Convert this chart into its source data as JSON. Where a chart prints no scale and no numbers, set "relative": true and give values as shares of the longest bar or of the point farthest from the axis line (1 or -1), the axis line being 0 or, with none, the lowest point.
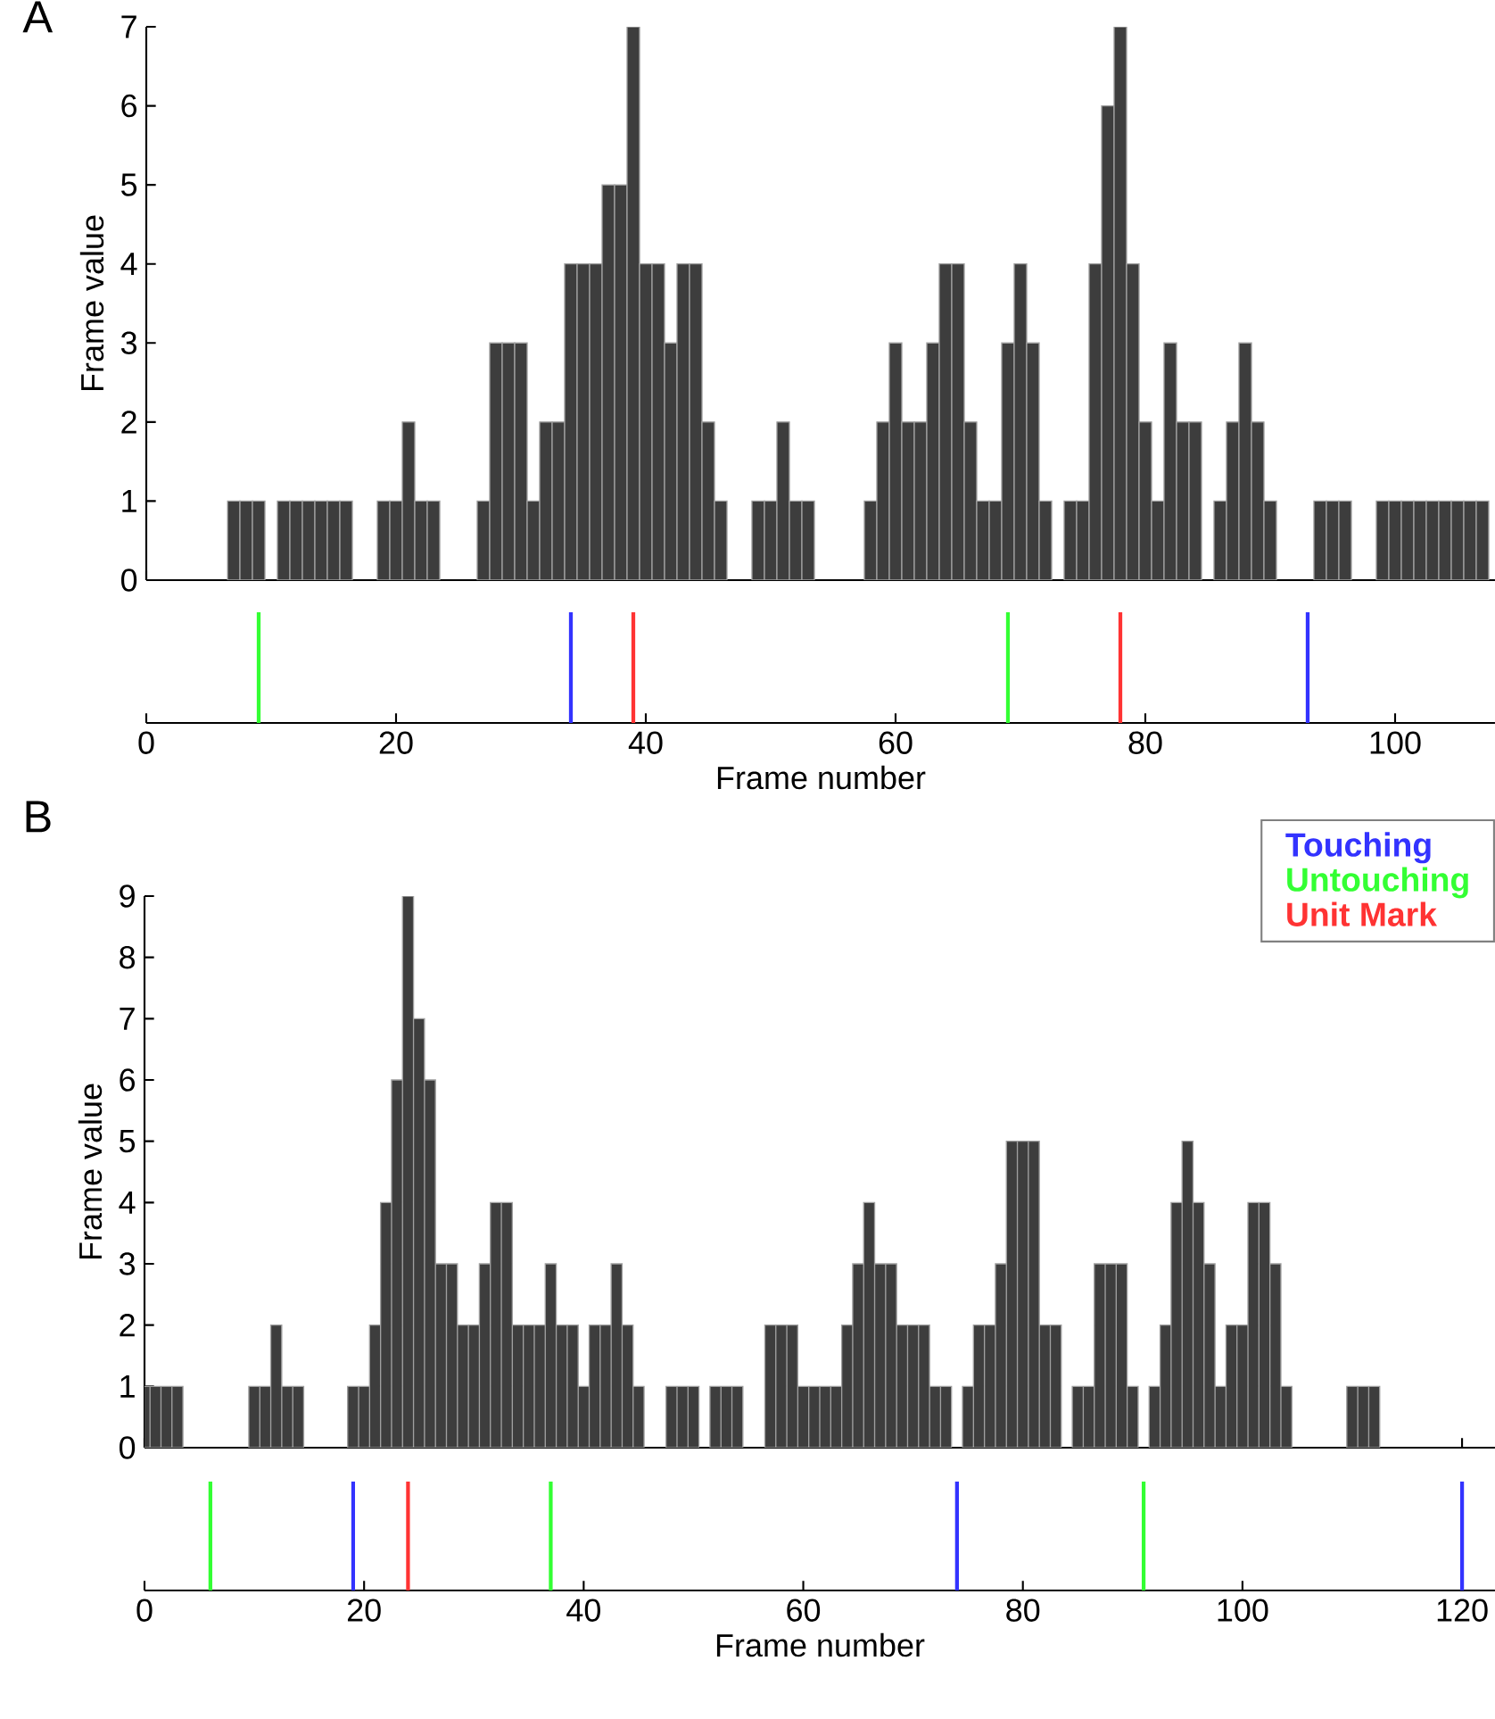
{
  "chart_data": [
    {
      "type": "bar",
      "title": "A",
      "ylabel": "Frame value",
      "color": "#3d3d3d",
      "xlim": [
        0,
        108
      ],
      "ylim": [
        0,
        7
      ],
      "xticks": [
        0,
        20,
        40,
        60,
        80,
        100
      ],
      "yticks": [
        0,
        1,
        2,
        3,
        4,
        5,
        6,
        7
      ],
      "tick_labels": "y",
      "x": [
        7,
        8,
        9,
        11,
        12,
        13,
        14,
        15,
        16,
        19,
        20,
        21,
        22,
        23,
        27,
        28,
        29,
        30,
        31,
        32,
        33,
        34,
        35,
        36,
        37,
        38,
        39,
        40,
        41,
        42,
        43,
        44,
        45,
        46,
        49,
        50,
        51,
        52,
        53,
        58,
        59,
        60,
        61,
        62,
        63,
        64,
        65,
        66,
        67,
        68,
        69,
        70,
        71,
        72,
        74,
        75,
        76,
        77,
        78,
        79,
        80,
        81,
        82,
        83,
        84,
        86,
        87,
        88,
        89,
        90,
        94,
        95,
        96,
        99,
        100,
        101,
        102,
        103,
        104,
        105,
        106,
        107
      ],
      "values": [
        1,
        1,
        1,
        1,
        1,
        1,
        1,
        1,
        1,
        1,
        1,
        2,
        1,
        1,
        1,
        3,
        3,
        3,
        1,
        2,
        2,
        4,
        4,
        4,
        5,
        5,
        7,
        4,
        4,
        3,
        4,
        4,
        2,
        1,
        1,
        1,
        2,
        1,
        1,
        1,
        2,
        3,
        2,
        2,
        3,
        4,
        4,
        2,
        1,
        1,
        3,
        4,
        3,
        1,
        1,
        1,
        4,
        6,
        7,
        4,
        2,
        1,
        3,
        2,
        2,
        1,
        2,
        3,
        2,
        1,
        1,
        1,
        1,
        1,
        1,
        1,
        1,
        1,
        1,
        1,
        1,
        1
      ]
    },
    {
      "type": "bar",
      "relative": true,
      "xlabel": "Frame number",
      "xlim": [
        0,
        108
      ],
      "xticks": [
        0,
        20,
        40,
        60,
        80,
        100
      ],
      "tick_labels": "x",
      "series": [
        {
          "color": "#3333ff",
          "x": [
            34,
            93
          ],
          "values": [
            1,
            1
          ]
        },
        {
          "color": "#33ff33",
          "x": [
            9,
            69
          ],
          "values": [
            1,
            1
          ]
        },
        {
          "color": "#ff3333",
          "x": [
            39,
            78
          ],
          "values": [
            1,
            1
          ]
        }
      ]
    },
    {
      "type": "bar",
      "title": "B",
      "ylabel": "Frame value",
      "color": "#3d3d3d",
      "xlim": [
        0,
        123
      ],
      "ylim": [
        0,
        9
      ],
      "xticks": [
        0,
        20,
        40,
        60,
        80,
        100,
        120
      ],
      "yticks": [
        0,
        1,
        2,
        3,
        4,
        5,
        6,
        7,
        8,
        9
      ],
      "tick_labels": "y",
      "x": [
        0,
        1,
        2,
        3,
        10,
        11,
        12,
        13,
        14,
        19,
        20,
        21,
        22,
        23,
        24,
        25,
        26,
        27,
        28,
        29,
        30,
        31,
        32,
        33,
        34,
        35,
        36,
        37,
        38,
        39,
        40,
        41,
        42,
        43,
        44,
        45,
        48,
        49,
        50,
        52,
        53,
        54,
        57,
        58,
        59,
        60,
        61,
        62,
        63,
        64,
        65,
        66,
        67,
        68,
        69,
        70,
        71,
        72,
        73,
        75,
        76,
        77,
        78,
        79,
        80,
        81,
        82,
        83,
        85,
        86,
        87,
        88,
        89,
        90,
        92,
        93,
        94,
        95,
        96,
        97,
        98,
        99,
        100,
        101,
        102,
        103,
        104,
        110,
        111,
        112
      ],
      "values": [
        1,
        1,
        1,
        1,
        1,
        1,
        2,
        1,
        1,
        1,
        1,
        2,
        4,
        6,
        9,
        7,
        6,
        3,
        3,
        2,
        2,
        3,
        4,
        4,
        2,
        2,
        2,
        3,
        2,
        2,
        1,
        2,
        2,
        3,
        2,
        1,
        1,
        1,
        1,
        1,
        1,
        1,
        2,
        2,
        2,
        1,
        1,
        1,
        1,
        2,
        3,
        4,
        3,
        3,
        2,
        2,
        2,
        1,
        1,
        1,
        2,
        2,
        3,
        5,
        5,
        5,
        2,
        2,
        1,
        1,
        3,
        3,
        3,
        1,
        1,
        2,
        4,
        5,
        4,
        3,
        1,
        2,
        2,
        4,
        4,
        3,
        1,
        1,
        1,
        1
      ]
    },
    {
      "type": "bar",
      "relative": true,
      "xlabel": "Frame number",
      "xlim": [
        0,
        123
      ],
      "xticks": [
        0,
        20,
        40,
        60,
        80,
        100,
        120
      ],
      "tick_labels": "x",
      "legend": "top right",
      "series": [
        {
          "name": "Touching",
          "color": "#3333ff",
          "x": [
            19,
            74,
            120
          ],
          "values": [
            1,
            1,
            1
          ]
        },
        {
          "name": "Untouching",
          "color": "#33ff33",
          "x": [
            6,
            37,
            91
          ],
          "values": [
            1,
            1,
            1
          ]
        },
        {
          "name": "Unit Mark",
          "color": "#ff3333",
          "x": [
            24
          ],
          "values": [
            1
          ]
        }
      ]
    }
  ]
}
